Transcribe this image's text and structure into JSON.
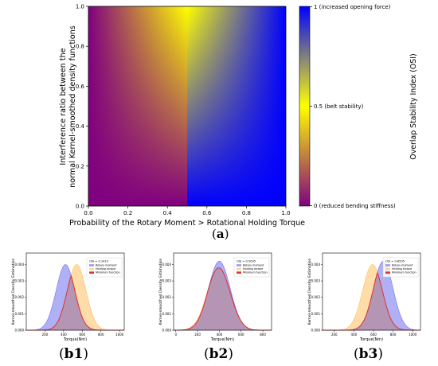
{
  "panel_a": {
    "caption_open": "(",
    "caption_letter": "a",
    "caption_close": ")",
    "ylabel_line1": "Interference ratio between the",
    "ylabel_line2": "normal Kernel-smoothed density functions",
    "xlabel": "Probability of the Rotary Moment > Rotational Holding Torque",
    "colorbar_label": "Overlap Stability Index (OSI)",
    "colorbar_ticks": [
      "1 (increased opening force)",
      "0.5 (belt stability)",
      "0 (reduced bending stiffness)"
    ],
    "xticks": [
      "0.0",
      "0.2",
      "0.4",
      "0.6",
      "0.8",
      "1.0"
    ],
    "yticks": [
      "0.0",
      "0.2",
      "0.4",
      "0.6",
      "0.8",
      "1.0"
    ],
    "colors": {
      "purple": "#800080",
      "yellow": "#ffff00",
      "blue": "#0000ff"
    }
  },
  "panel_b": {
    "common": {
      "ylabel": "Kernel-smoothed Density Estimation",
      "xlabel": "Torque(Nm)",
      "yticks": [
        "0.000",
        "0.001",
        "0.002",
        "0.003",
        "0.004"
      ],
      "legend": [
        "Rotary moment",
        "Holding torque",
        "Minimum function"
      ],
      "colors": {
        "rotary": "#7070ee",
        "holding": "#ffc060",
        "minimum": "#e03030"
      }
    },
    "b1": {
      "caption_open": "(",
      "caption_letter": "b1",
      "caption_close": ")",
      "osi": "OSI = 0.1419",
      "xticks": [
        "200",
        "400",
        "600",
        "800",
        "1000"
      ]
    },
    "b2": {
      "caption_open": "(",
      "caption_letter": "b2",
      "caption_close": ")",
      "osi": "OSI = 0.5095",
      "xticks": [
        "0",
        "200",
        "400",
        "600",
        "800"
      ]
    },
    "b3": {
      "caption_open": "(",
      "caption_letter": "b3",
      "caption_close": ")",
      "osi": "OSI = 0.8595",
      "xticks": [
        "200",
        "400",
        "600",
        "800",
        "1000"
      ]
    }
  },
  "chart_data": [
    {
      "type": "heatmap",
      "title": "",
      "xlabel": "Probability of the Rotary Moment > Rotational Holding Torque",
      "ylabel": "Interference ratio between the normal Kernel-smoothed density functions",
      "xlim": [
        0,
        1
      ],
      "ylim": [
        0,
        1
      ],
      "colorbar": {
        "label": "Overlap Stability Index (OSI)",
        "range": [
          0,
          1
        ],
        "stops": [
          {
            "value": 0,
            "color": "#800080"
          },
          {
            "value": 0.5,
            "color": "#ffff00"
          },
          {
            "value": 1,
            "color": "#0000ff"
          }
        ]
      }
    },
    {
      "type": "area",
      "panel": "b1",
      "annotation": "OSI = 0.1419",
      "xlabel": "Torque(Nm)",
      "ylabel": "Kernel-smoothed Density Estimation",
      "xlim": [
        0,
        1050
      ],
      "ylim": [
        0,
        0.0047
      ],
      "series": [
        {
          "name": "Rotary moment",
          "mean": 420,
          "sd": 100,
          "peak": 0.004
        },
        {
          "name": "Holding torque",
          "mean": 540,
          "sd": 100,
          "peak": 0.004
        },
        {
          "name": "Minimum function",
          "of": [
            "Rotary moment",
            "Holding torque"
          ]
        }
      ]
    },
    {
      "type": "area",
      "panel": "b2",
      "annotation": "OSI = 0.5095",
      "xlabel": "Torque(Nm)",
      "ylabel": "Kernel-smoothed Density Estimation",
      "xlim": [
        -20,
        880
      ],
      "ylim": [
        0,
        0.0047
      ],
      "series": [
        {
          "name": "Rotary moment",
          "mean": 400,
          "sd": 100,
          "peak": 0.0042
        },
        {
          "name": "Holding torque",
          "mean": 395,
          "sd": 105,
          "peak": 0.0038
        },
        {
          "name": "Minimum function",
          "of": [
            "Rotary moment",
            "Holding torque"
          ]
        }
      ]
    },
    {
      "type": "area",
      "panel": "b3",
      "annotation": "OSI = 0.8595",
      "xlabel": "Torque(Nm)",
      "ylabel": "Kernel-smoothed Density Estimation",
      "xlim": [
        80,
        1080
      ],
      "ylim": [
        0,
        0.0047
      ],
      "series": [
        {
          "name": "Rotary moment",
          "mean": 700,
          "sd": 100,
          "peak": 0.0042
        },
        {
          "name": "Holding torque",
          "mean": 590,
          "sd": 100,
          "peak": 0.004
        },
        {
          "name": "Minimum function",
          "of": [
            "Rotary moment",
            "Holding torque"
          ]
        }
      ]
    }
  ]
}
